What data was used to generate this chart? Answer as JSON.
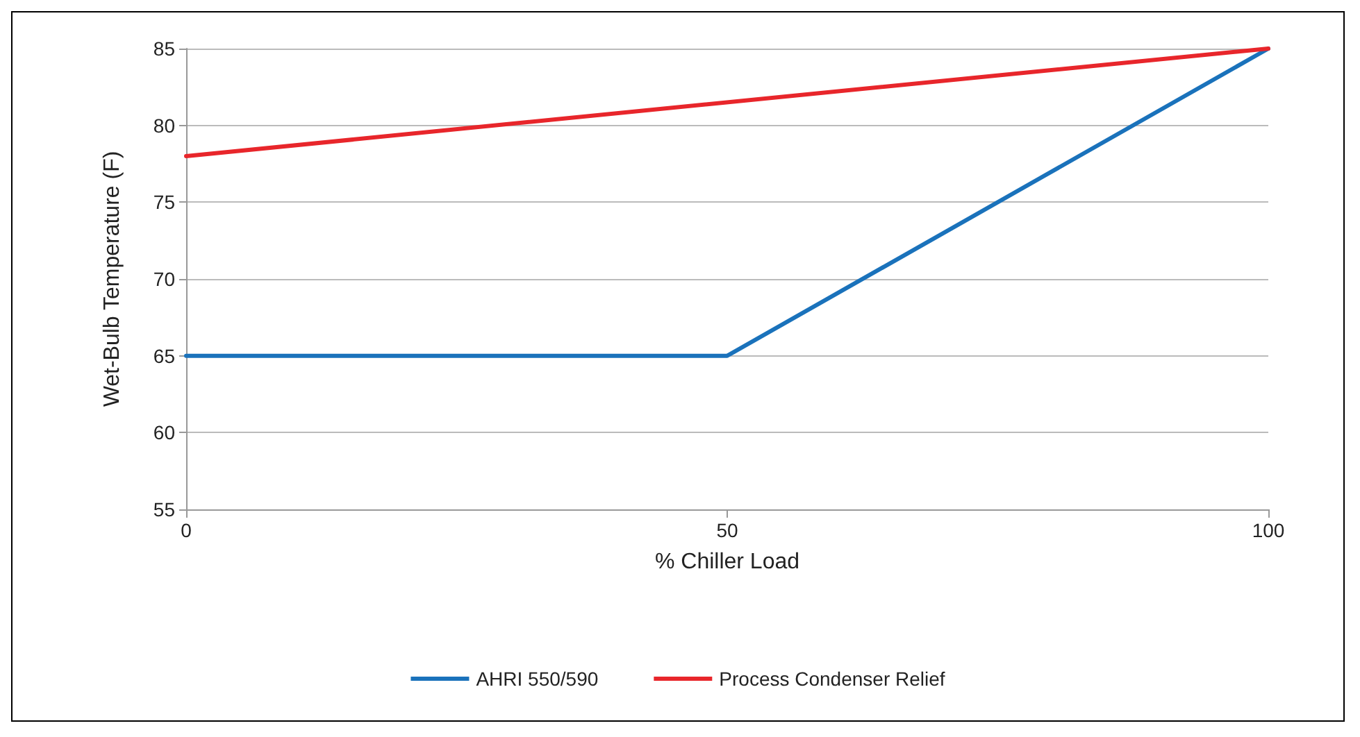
{
  "chart_data": {
    "type": "line",
    "xlabel": "% Chiller Load",
    "ylabel": "Wet-Bulb Temperature (F)",
    "xlim": [
      0,
      100
    ],
    "xticks": [
      0,
      50,
      100
    ],
    "ylim": [
      55,
      85
    ],
    "yticks": [
      55,
      60,
      65,
      70,
      75,
      80,
      85
    ],
    "series": [
      {
        "name": "AHRI 550/590",
        "color": "#1a72bb",
        "x": [
          0,
          50,
          100
        ],
        "values": [
          65,
          65,
          85
        ]
      },
      {
        "name": "Process Condenser Relief",
        "color": "#e8262b",
        "x": [
          0,
          100
        ],
        "values": [
          78,
          85
        ]
      }
    ],
    "grid": "y",
    "legend": "bottom",
    "marker": "none",
    "line_style": "solid"
  }
}
